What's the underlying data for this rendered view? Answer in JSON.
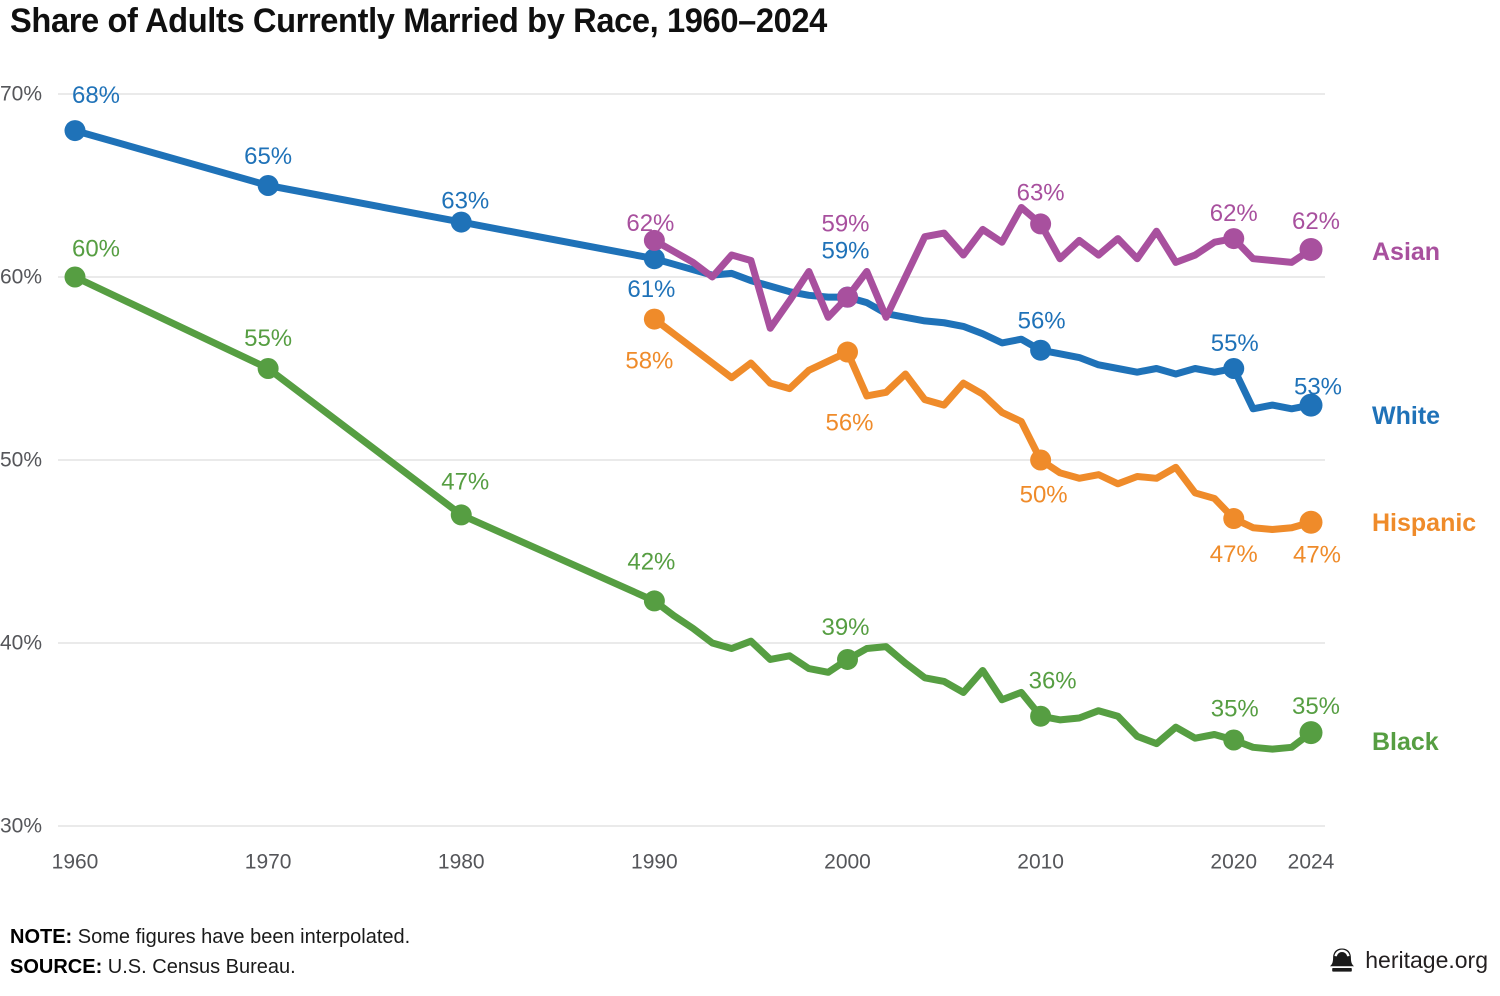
{
  "title": "Share of Adults Currently Married by Race, 1960–2024",
  "note": {
    "label": "NOTE:",
    "text": "Some figures have been interpolated."
  },
  "source": {
    "label": "SOURCE:",
    "text": "U.S. Census Bureau."
  },
  "footer": {
    "brand": "heritage.org",
    "icon": "liberty-bell-icon"
  },
  "colors": {
    "grid": "#e3e3e3",
    "axis_text": "#55565a",
    "title_text": "#101010",
    "white_series": "#1f72b8",
    "black_series": "#569e42",
    "hispanic_series": "#ef8b2a",
    "asian_series": "#a8509e"
  },
  "chart_data": {
    "type": "line",
    "title": "Share of Adults Currently Married by Race, 1960–2024",
    "xlabel": "",
    "ylabel": "",
    "grid": true,
    "legend_position": "right-inline",
    "x_axis": {
      "min": 1960,
      "max": 2024,
      "ticks": [
        {
          "value": 1960,
          "label": "1960"
        },
        {
          "value": 1970,
          "label": "1970"
        },
        {
          "value": 1980,
          "label": "1980"
        },
        {
          "value": 1990,
          "label": "1990"
        },
        {
          "value": 2000,
          "label": "2000"
        },
        {
          "value": 2010,
          "label": "2010"
        },
        {
          "value": 2020,
          "label": "2020"
        },
        {
          "value": 2024,
          "label": "2024"
        }
      ]
    },
    "y_axis": {
      "min": 30,
      "max": 70,
      "ticks": [
        {
          "value": 70,
          "label": "70%"
        },
        {
          "value": 60,
          "label": "60%"
        },
        {
          "value": 50,
          "label": "50%"
        },
        {
          "value": 40,
          "label": "40%"
        },
        {
          "value": 30,
          "label": "30%"
        }
      ]
    },
    "series": [
      {
        "name": "White",
        "color": "#1f72b8",
        "years": [
          1960,
          1970,
          1980,
          1990,
          1991,
          1992,
          1993,
          1994,
          1995,
          1996,
          1997,
          1998,
          1999,
          2000,
          2001,
          2002,
          2003,
          2004,
          2005,
          2006,
          2007,
          2008,
          2009,
          2010,
          2011,
          2012,
          2013,
          2014,
          2015,
          2016,
          2017,
          2018,
          2019,
          2020,
          2021,
          2022,
          2023,
          2024
        ],
        "values": [
          68,
          65,
          63,
          61.0,
          60.7,
          60.4,
          60.1,
          60.2,
          59.8,
          59.5,
          59.2,
          59.0,
          58.9,
          58.9,
          58.6,
          58.0,
          57.8,
          57.6,
          57.5,
          57.3,
          56.9,
          56.4,
          56.6,
          56.0,
          55.8,
          55.6,
          55.2,
          55.0,
          54.8,
          55.0,
          54.7,
          55.0,
          54.8,
          55.0,
          52.8,
          53.0,
          52.8,
          53.0
        ],
        "dot_years": [
          1960,
          1970,
          1980,
          1990,
          2000,
          2010,
          2020,
          2024
        ],
        "annotations": [
          {
            "year": 1960,
            "value": 68.0,
            "label": "68%",
            "dx": 21,
            "dy": -35
          },
          {
            "year": 1970,
            "value": 65.0,
            "label": "65%",
            "dx": 0,
            "dy": -29
          },
          {
            "year": 1980,
            "value": 63.0,
            "label": "63%",
            "dx": 4,
            "dy": -21
          },
          {
            "year": 1990,
            "value": 61.0,
            "label": "61%",
            "dx": -3,
            "dy": 31
          },
          {
            "year": 2000,
            "value": 58.9,
            "label": "59%",
            "dx": -2,
            "dy": -46
          },
          {
            "year": 2010,
            "value": 56.0,
            "label": "56%",
            "dx": 1,
            "dy": -29
          },
          {
            "year": 2020,
            "value": 55.0,
            "label": "55%",
            "dx": 1,
            "dy": -25
          },
          {
            "year": 2024,
            "value": 53.0,
            "label": "53%",
            "dx": 7,
            "dy": -18
          }
        ]
      },
      {
        "name": "Black",
        "color": "#569e42",
        "years": [
          1960,
          1970,
          1980,
          1990,
          1991,
          1992,
          1993,
          1994,
          1995,
          1996,
          1997,
          1998,
          1999,
          2000,
          2001,
          2002,
          2003,
          2004,
          2005,
          2006,
          2007,
          2008,
          2009,
          2010,
          2011,
          2012,
          2013,
          2014,
          2015,
          2016,
          2017,
          2018,
          2019,
          2020,
          2021,
          2022,
          2023,
          2024
        ],
        "values": [
          60,
          55,
          47,
          42.3,
          41.5,
          40.8,
          40.0,
          39.7,
          40.1,
          39.1,
          39.3,
          38.6,
          38.4,
          39.1,
          39.7,
          39.8,
          38.9,
          38.1,
          37.9,
          37.3,
          38.5,
          36.9,
          37.3,
          36.0,
          35.8,
          35.9,
          36.3,
          36.0,
          34.9,
          34.5,
          35.4,
          34.8,
          35.0,
          34.7,
          34.3,
          34.2,
          34.3,
          35.1
        ],
        "dot_years": [
          1960,
          1970,
          1980,
          1990,
          2000,
          2010,
          2020,
          2024
        ],
        "annotations": [
          {
            "year": 1960,
            "value": 60.0,
            "label": "60%",
            "dx": 21,
            "dy": -28
          },
          {
            "year": 1970,
            "value": 55.0,
            "label": "55%",
            "dx": 0,
            "dy": -30
          },
          {
            "year": 1980,
            "value": 47.0,
            "label": "47%",
            "dx": 4,
            "dy": -33
          },
          {
            "year": 1990,
            "value": 42.3,
            "label": "42%",
            "dx": -3,
            "dy": -39
          },
          {
            "year": 2000,
            "value": 39.1,
            "label": "39%",
            "dx": -2,
            "dy": -32
          },
          {
            "year": 2010,
            "value": 36.0,
            "label": "36%",
            "dx": 12,
            "dy": -35
          },
          {
            "year": 2020,
            "value": 34.7,
            "label": "35%",
            "dx": 1,
            "dy": -31
          },
          {
            "year": 2024,
            "value": 35.1,
            "label": "35%",
            "dx": 5,
            "dy": -26
          }
        ]
      },
      {
        "name": "Hispanic",
        "color": "#ef8b2a",
        "years": [
          1990,
          1991,
          1992,
          1993,
          1994,
          1995,
          1996,
          1997,
          1998,
          1999,
          2000,
          2001,
          2002,
          2003,
          2004,
          2005,
          2006,
          2007,
          2008,
          2009,
          2010,
          2011,
          2012,
          2013,
          2014,
          2015,
          2016,
          2017,
          2018,
          2019,
          2020,
          2021,
          2022,
          2023,
          2024
        ],
        "values": [
          57.7,
          56.9,
          56.1,
          55.3,
          54.5,
          55.3,
          54.2,
          53.9,
          54.9,
          55.4,
          55.9,
          53.5,
          53.7,
          54.7,
          53.3,
          53.0,
          54.2,
          53.6,
          52.6,
          52.1,
          50.0,
          49.3,
          49.0,
          49.2,
          48.7,
          49.1,
          49.0,
          49.6,
          48.2,
          47.9,
          46.8,
          46.3,
          46.2,
          46.3,
          46.6
        ],
        "dot_years": [
          1990,
          2000,
          2010,
          2020,
          2024
        ],
        "annotations": [
          {
            "year": 1990,
            "value": 57.7,
            "label": "58%",
            "dx": -5,
            "dy": 42
          },
          {
            "year": 2000,
            "value": 55.9,
            "label": "56%",
            "dx": 2,
            "dy": 71
          },
          {
            "year": 2010,
            "value": 50.0,
            "label": "50%",
            "dx": 3,
            "dy": 35
          },
          {
            "year": 2020,
            "value": 46.8,
            "label": "47%",
            "dx": 0,
            "dy": 36
          },
          {
            "year": 2024,
            "value": 46.6,
            "label": "47%",
            "dx": 6,
            "dy": 33
          }
        ]
      },
      {
        "name": "Asian",
        "color": "#a8509e",
        "years": [
          1990,
          1991,
          1992,
          1993,
          1994,
          1995,
          1996,
          1997,
          1998,
          1999,
          2000,
          2001,
          2002,
          2003,
          2004,
          2005,
          2006,
          2007,
          2008,
          2009,
          2010,
          2011,
          2012,
          2013,
          2014,
          2015,
          2016,
          2017,
          2018,
          2019,
          2020,
          2021,
          2022,
          2023,
          2024
        ],
        "values": [
          62.0,
          61.4,
          60.8,
          60.0,
          61.2,
          60.9,
          57.2,
          58.7,
          60.3,
          57.8,
          58.9,
          60.3,
          57.8,
          60.0,
          62.2,
          62.4,
          61.2,
          62.6,
          61.9,
          63.8,
          62.9,
          61.0,
          62.0,
          61.2,
          62.1,
          61.0,
          62.5,
          60.8,
          61.2,
          61.9,
          62.1,
          61.0,
          60.9,
          60.8,
          61.5
        ],
        "dot_years": [
          1990,
          2000,
          2010,
          2020,
          2024
        ],
        "annotations": [
          {
            "year": 1990,
            "value": 62.0,
            "label": "62%",
            "dx": -4,
            "dy": -17
          },
          {
            "year": 2000,
            "value": 58.9,
            "label": "59%",
            "dx": -2,
            "dy": -73
          },
          {
            "year": 2010,
            "value": 62.9,
            "label": "63%",
            "dx": 0,
            "dy": -31
          },
          {
            "year": 2020,
            "value": 62.1,
            "label": "62%",
            "dx": 0,
            "dy": -25
          },
          {
            "year": 2024,
            "value": 61.5,
            "label": "62%",
            "dx": 5,
            "dy": -28
          }
        ]
      }
    ]
  }
}
